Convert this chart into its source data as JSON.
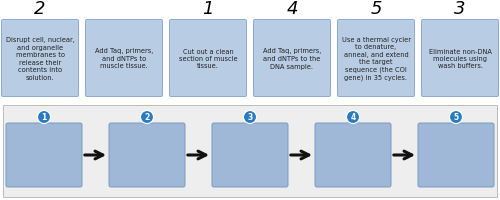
{
  "top_numbers": [
    "2",
    "",
    "1",
    "4",
    "5",
    "3"
  ],
  "box_texts": [
    "Disrupt cell, nuclear,\nand organelle\nmembranes to\nrelease their\ncontents into\nsolution.",
    "Add Taq, primers,\nand dNTPs to\nmuscle tissue.",
    "Cut out a clean\nsection of muscle\ntissue.",
    "Add Taq, primers,\nand dNTPs to the\nDNA sample.",
    "Use a thermal cycler\nto denature,\nanneal, and extend\nthe target\nsequence (the COI\ngene) in 35 cycles.",
    "Eliminate non-DNA\nmolecules using\nwash buffers."
  ],
  "top_box_color": "#b8cce4",
  "top_box_edge": "#8aaccf",
  "bottom_box_color": "#9fb8d8",
  "bottom_box_edge": "#7a9bbf",
  "bottom_bg_color": "#eeeeee",
  "bottom_bg_edge": "#bbbbbb",
  "circle_color": "#2a7bc0",
  "circle_edge": "#1a5a90",
  "circle_numbers": [
    "1",
    "2",
    "3",
    "4",
    "5"
  ],
  "arrow_color": "#111111",
  "text_color": "#222222",
  "font_size_top_num": 13,
  "font_size_box_text": 4.8,
  "font_size_circle_num": 5.5
}
